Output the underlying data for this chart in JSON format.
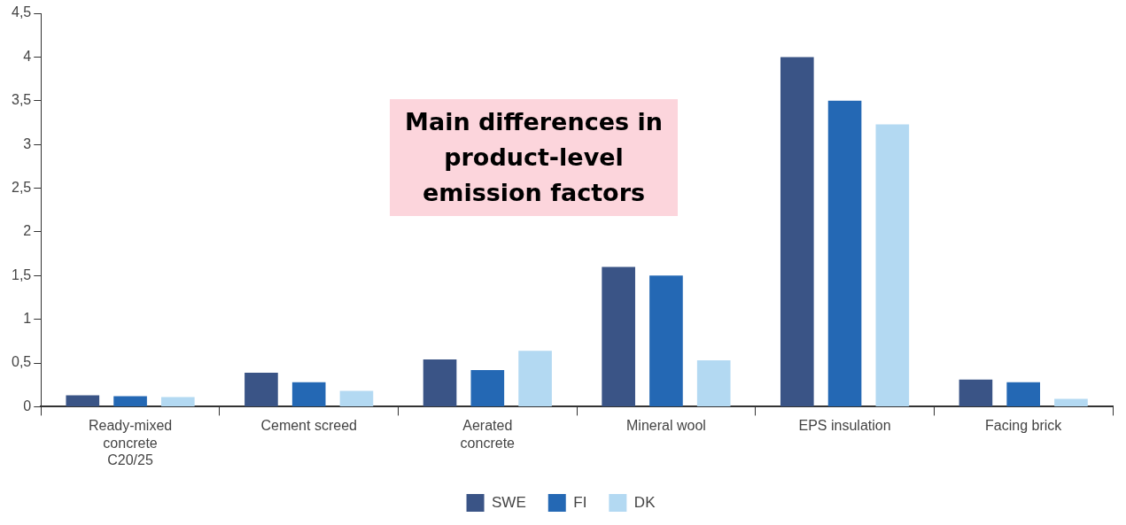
{
  "chart_data": {
    "type": "bar",
    "title": "Main differences in product-level emission factors",
    "categories": [
      "Ready-mixed concrete C20/25",
      "Cement screed",
      "Aerated concrete",
      "Mineral wool",
      "EPS insulation",
      "Facing brick"
    ],
    "series": [
      {
        "name": "SWE",
        "color": "#3a5486",
        "values": [
          0.13,
          0.39,
          0.54,
          1.6,
          4.0,
          0.31
        ]
      },
      {
        "name": "FI",
        "color": "#2468b4",
        "values": [
          0.12,
          0.28,
          0.42,
          1.5,
          3.5,
          0.28
        ]
      },
      {
        "name": "DK",
        "color": "#b3d9f2",
        "values": [
          0.11,
          0.18,
          0.64,
          0.53,
          3.23,
          0.09
        ]
      }
    ],
    "ylim": [
      0,
      4.5
    ],
    "yticks": [
      0,
      {
        "value": 0.5,
        "label": "0,5"
      },
      1,
      {
        "value": 1.5,
        "label": "1,5"
      },
      2,
      {
        "value": 2.5,
        "label": "2,5"
      },
      3,
      {
        "value": 3.5,
        "label": "3,5"
      },
      4,
      {
        "value": 4.5,
        "label": "4,5"
      }
    ],
    "grid": false,
    "legend": "bottom"
  }
}
